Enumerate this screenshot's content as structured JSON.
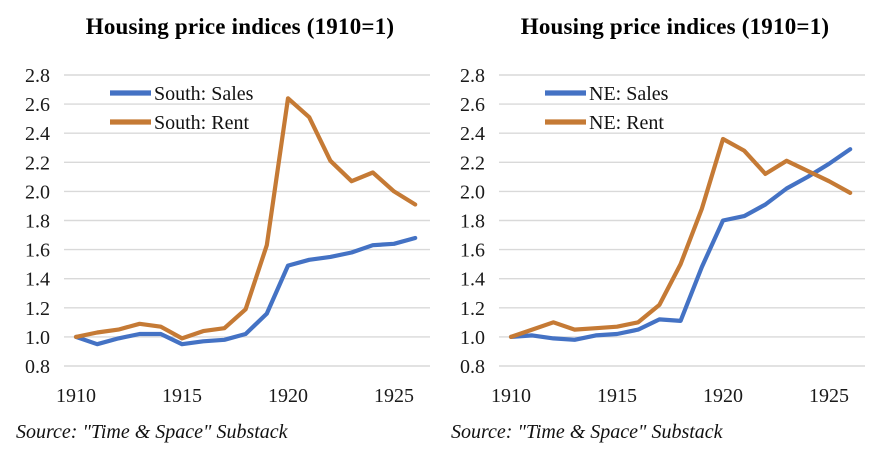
{
  "theme": {
    "background": "#ffffff",
    "grid_color": "#d9d9d9",
    "axis_text_color": "#1a1a1a",
    "title_color": "#000000",
    "sales_line_color": "#4472C4",
    "rent_line_color": "#C57A35"
  },
  "source_note": "Source: \"Time & Space\" Substack",
  "chart_data": [
    {
      "type": "line",
      "title": "Housing price indices (1910=1)",
      "region": "South",
      "xlabel": "",
      "ylabel": "",
      "x": [
        1910,
        1911,
        1912,
        1913,
        1914,
        1915,
        1916,
        1917,
        1918,
        1919,
        1920,
        1921,
        1922,
        1923,
        1924,
        1925,
        1926
      ],
      "xticks": [
        1910,
        1915,
        1920,
        1925
      ],
      "ylim": [
        0.8,
        2.8
      ],
      "yticks": [
        2.8,
        2.6,
        2.4,
        2.2,
        2.0,
        1.8,
        1.6,
        1.4,
        1.2,
        1.0,
        0.8
      ],
      "grid": true,
      "legend_position": "top-left-inside",
      "series": [
        {
          "name": "South: Sales",
          "color": "#4472C4",
          "values": [
            1.0,
            0.95,
            0.99,
            1.02,
            1.02,
            0.95,
            0.97,
            0.98,
            1.02,
            1.16,
            1.49,
            1.53,
            1.55,
            1.58,
            1.63,
            1.64,
            1.68
          ]
        },
        {
          "name": "South: Rent",
          "color": "#C57A35",
          "values": [
            1.0,
            1.03,
            1.05,
            1.09,
            1.07,
            0.99,
            1.04,
            1.06,
            1.19,
            1.63,
            2.64,
            2.51,
            2.21,
            2.07,
            2.13,
            2.0,
            1.91
          ]
        }
      ],
      "source": "Source: \"Time & Space\" Substack"
    },
    {
      "type": "line",
      "title": "Housing price indices (1910=1)",
      "region": "NE",
      "xlabel": "",
      "ylabel": "",
      "x": [
        1910,
        1911,
        1912,
        1913,
        1914,
        1915,
        1916,
        1917,
        1918,
        1919,
        1920,
        1921,
        1922,
        1923,
        1924,
        1925,
        1926
      ],
      "xticks": [
        1910,
        1915,
        1920,
        1925
      ],
      "ylim": [
        0.8,
        2.8
      ],
      "yticks": [
        2.8,
        2.6,
        2.4,
        2.2,
        2.0,
        1.8,
        1.6,
        1.4,
        1.2,
        1.0,
        0.8
      ],
      "grid": true,
      "legend_position": "top-left-inside",
      "series": [
        {
          "name": "NE: Sales",
          "color": "#4472C4",
          "values": [
            1.0,
            1.01,
            0.99,
            0.98,
            1.01,
            1.02,
            1.05,
            1.12,
            1.11,
            1.48,
            1.8,
            1.83,
            1.91,
            2.02,
            2.1,
            2.19,
            2.29
          ]
        },
        {
          "name": "NE: Rent",
          "color": "#C57A35",
          "values": [
            1.0,
            1.05,
            1.1,
            1.05,
            1.06,
            1.07,
            1.1,
            1.22,
            1.5,
            1.88,
            2.36,
            2.28,
            2.12,
            2.21,
            2.14,
            2.07,
            1.99
          ]
        }
      ],
      "source": "Source: \"Time & Space\" Substack"
    }
  ]
}
